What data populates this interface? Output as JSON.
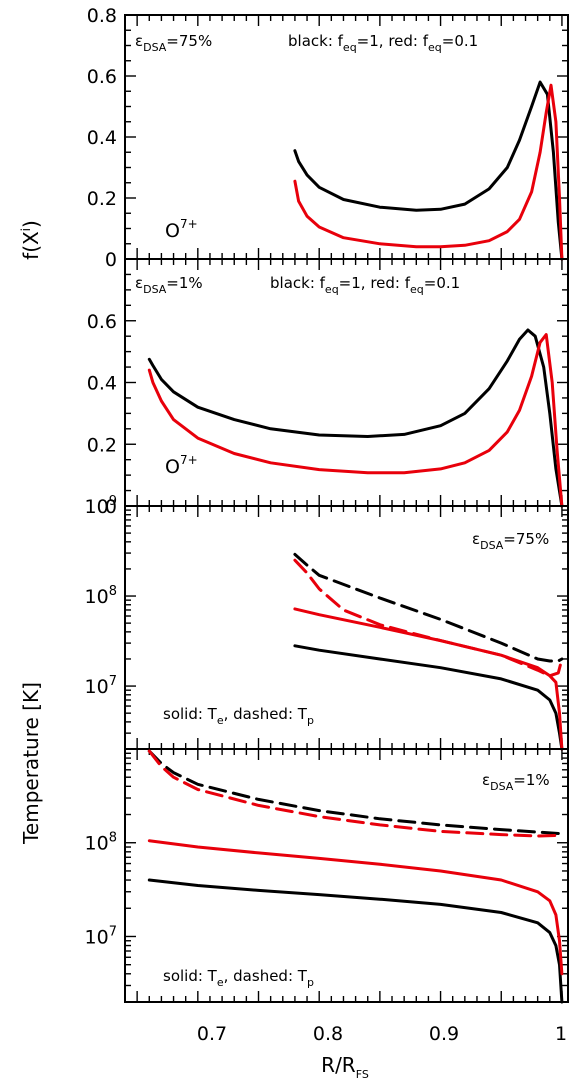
{
  "x_axis": {
    "label_main": "R/R",
    "label_sub": "FS",
    "ticks": [
      "0.7",
      "0.8",
      "0.9",
      "1"
    ],
    "range": [
      0.64,
      1.005
    ]
  },
  "y_axis_f": {
    "label_main": "f(X",
    "label_sup": "i",
    "label_end": ")"
  },
  "y_axis_t": {
    "label": "Temperature [K]"
  },
  "panel_text": {
    "eps_symbol": "ε",
    "eps_sub": "DSA",
    "eps75": "=75%",
    "eps1": "=1%",
    "ion_main": "O",
    "ion_sup": "7+",
    "black_text": "black: f",
    "eq_sub": "eq",
    "black_val": "=1,  red: f",
    "red_val": "=0.1",
    "solid_text": "solid: T",
    "te_sub": "e",
    "dashed_text": ",  dashed: T",
    "tp_sub": "p"
  },
  "colors": {
    "black": "#000000",
    "red": "#e8000b"
  },
  "chart_data": [
    {
      "type": "line",
      "panel": "f(X^i), eps_DSA=75%",
      "ylim": [
        0,
        0.8
      ],
      "yticks": [
        "0",
        "0.2",
        "0.4",
        "0.6",
        "0.8"
      ],
      "series": [
        {
          "name": "black: f_eq=1",
          "color": "black",
          "dash": false,
          "x": [
            0.78,
            0.783,
            0.79,
            0.8,
            0.82,
            0.85,
            0.88,
            0.9,
            0.92,
            0.94,
            0.955,
            0.965,
            0.975,
            0.982,
            0.988,
            0.993,
            0.997,
            1.0
          ],
          "y": [
            0.355,
            0.32,
            0.275,
            0.235,
            0.195,
            0.17,
            0.16,
            0.163,
            0.18,
            0.23,
            0.3,
            0.39,
            0.5,
            0.58,
            0.54,
            0.35,
            0.12,
            0.0
          ]
        },
        {
          "name": "red: f_eq=0.1",
          "color": "red",
          "dash": false,
          "x": [
            0.78,
            0.783,
            0.79,
            0.8,
            0.82,
            0.85,
            0.88,
            0.9,
            0.92,
            0.94,
            0.955,
            0.965,
            0.975,
            0.982,
            0.987,
            0.991,
            0.995,
            0.998,
            1.0
          ],
          "y": [
            0.255,
            0.19,
            0.14,
            0.105,
            0.07,
            0.05,
            0.04,
            0.04,
            0.045,
            0.06,
            0.09,
            0.13,
            0.22,
            0.35,
            0.48,
            0.57,
            0.45,
            0.2,
            0.0
          ]
        }
      ]
    },
    {
      "type": "line",
      "panel": "f(X^i), eps_DSA=1%",
      "ylim": [
        0,
        0.8
      ],
      "yticks": [
        "0",
        "0.2",
        "0.4",
        "0.6"
      ],
      "series": [
        {
          "name": "black: f_eq=1",
          "color": "black",
          "dash": false,
          "x": [
            0.66,
            0.663,
            0.67,
            0.68,
            0.7,
            0.73,
            0.76,
            0.8,
            0.84,
            0.87,
            0.9,
            0.92,
            0.94,
            0.955,
            0.965,
            0.972,
            0.978,
            0.985,
            0.99,
            0.995,
            1.0
          ],
          "y": [
            0.475,
            0.455,
            0.41,
            0.37,
            0.32,
            0.28,
            0.25,
            0.23,
            0.225,
            0.232,
            0.26,
            0.3,
            0.38,
            0.47,
            0.54,
            0.57,
            0.55,
            0.45,
            0.3,
            0.12,
            0.0
          ]
        },
        {
          "name": "red: f_eq=0.1",
          "color": "red",
          "dash": false,
          "x": [
            0.66,
            0.663,
            0.67,
            0.68,
            0.7,
            0.73,
            0.76,
            0.8,
            0.84,
            0.87,
            0.9,
            0.92,
            0.94,
            0.955,
            0.965,
            0.975,
            0.982,
            0.987,
            0.992,
            0.996,
            1.0
          ],
          "y": [
            0.44,
            0.4,
            0.34,
            0.28,
            0.22,
            0.17,
            0.14,
            0.118,
            0.108,
            0.108,
            0.12,
            0.14,
            0.18,
            0.24,
            0.31,
            0.42,
            0.53,
            0.555,
            0.4,
            0.18,
            0.0
          ]
        }
      ]
    },
    {
      "type": "line",
      "panel": "Temperature [K], eps_DSA=75%",
      "yscale": "log",
      "ylim": [
        2000000,
        1000000000
      ],
      "yticks": [
        "10^7",
        "10^8",
        "10^9"
      ],
      "series": [
        {
          "name": "solid: T_e (f_eq=1)",
          "color": "black",
          "dash": false,
          "x": [
            0.78,
            0.8,
            0.85,
            0.9,
            0.95,
            0.98,
            0.99,
            0.995,
            0.998,
            1.0
          ],
          "y": [
            28000000,
            25000000,
            20000000,
            16000000,
            12000000,
            9000000,
            7000000,
            5000000,
            3000000,
            2000000
          ]
        },
        {
          "name": "dashed: T_p (f_eq=1)",
          "color": "black",
          "dash": true,
          "x": [
            0.78,
            0.79,
            0.8,
            0.85,
            0.9,
            0.95,
            0.98,
            0.99,
            0.997,
            1.0
          ],
          "y": [
            290000000,
            220000000,
            170000000,
            95000000,
            55000000,
            30000000,
            20000000,
            19000000,
            19000000,
            20000000
          ]
        },
        {
          "name": "solid: T_e (f_eq=0.1)",
          "color": "red",
          "dash": false,
          "x": [
            0.78,
            0.8,
            0.85,
            0.9,
            0.95,
            0.98,
            0.99,
            0.995,
            0.998,
            1.0
          ],
          "y": [
            72000000,
            62000000,
            45000000,
            32000000,
            22000000,
            16000000,
            13000000,
            11000000,
            5000000,
            2000000
          ]
        },
        {
          "name": "dashed: T_p (f_eq=0.1)",
          "color": "red",
          "dash": true,
          "x": [
            0.78,
            0.79,
            0.8,
            0.82,
            0.85,
            0.9,
            0.95,
            0.98,
            0.99,
            0.997,
            1.0
          ],
          "y": [
            250000000,
            180000000,
            120000000,
            70000000,
            48000000,
            32000000,
            22000000,
            15000000,
            13000000,
            14000000,
            20000000
          ]
        }
      ]
    },
    {
      "type": "line",
      "panel": "Temperature [K], eps_DSA=1%",
      "yscale": "log",
      "ylim": [
        2000000,
        1000000000
      ],
      "yticks": [
        "10^7",
        "10^8"
      ],
      "series": [
        {
          "name": "solid: T_e (f_eq=1)",
          "color": "black",
          "dash": false,
          "x": [
            0.66,
            0.7,
            0.75,
            0.8,
            0.85,
            0.9,
            0.95,
            0.98,
            0.99,
            0.995,
            0.998,
            1.0
          ],
          "y": [
            40000000,
            35000000,
            31000000,
            28000000,
            25000000,
            22000000,
            18000000,
            14000000,
            11000000,
            8000000,
            5000000,
            2000000
          ]
        },
        {
          "name": "dashed: T_p (f_eq=1)",
          "color": "black",
          "dash": true,
          "x": [
            0.66,
            0.67,
            0.68,
            0.7,
            0.75,
            0.8,
            0.85,
            0.9,
            0.95,
            0.98,
            1.0
          ],
          "y": [
            950000000,
            700000000,
            560000000,
            420000000,
            290000000,
            220000000,
            180000000,
            155000000,
            138000000,
            130000000,
            125000000
          ]
        },
        {
          "name": "solid: T_e (f_eq=0.1)",
          "color": "red",
          "dash": false,
          "x": [
            0.66,
            0.7,
            0.75,
            0.8,
            0.85,
            0.9,
            0.95,
            0.98,
            0.99,
            0.995,
            0.998,
            1.0
          ],
          "y": [
            105000000,
            90000000,
            78000000,
            68000000,
            59000000,
            50000000,
            40000000,
            30000000,
            24000000,
            17000000,
            9000000,
            4000000
          ]
        },
        {
          "name": "dashed: T_p (f_eq=0.1)",
          "color": "red",
          "dash": true,
          "x": [
            0.66,
            0.67,
            0.68,
            0.7,
            0.75,
            0.8,
            0.85,
            0.9,
            0.95,
            0.98,
            1.0
          ],
          "y": [
            950000000,
            650000000,
            500000000,
            370000000,
            250000000,
            190000000,
            155000000,
            132000000,
            122000000,
            118000000,
            120000000
          ]
        }
      ]
    }
  ]
}
